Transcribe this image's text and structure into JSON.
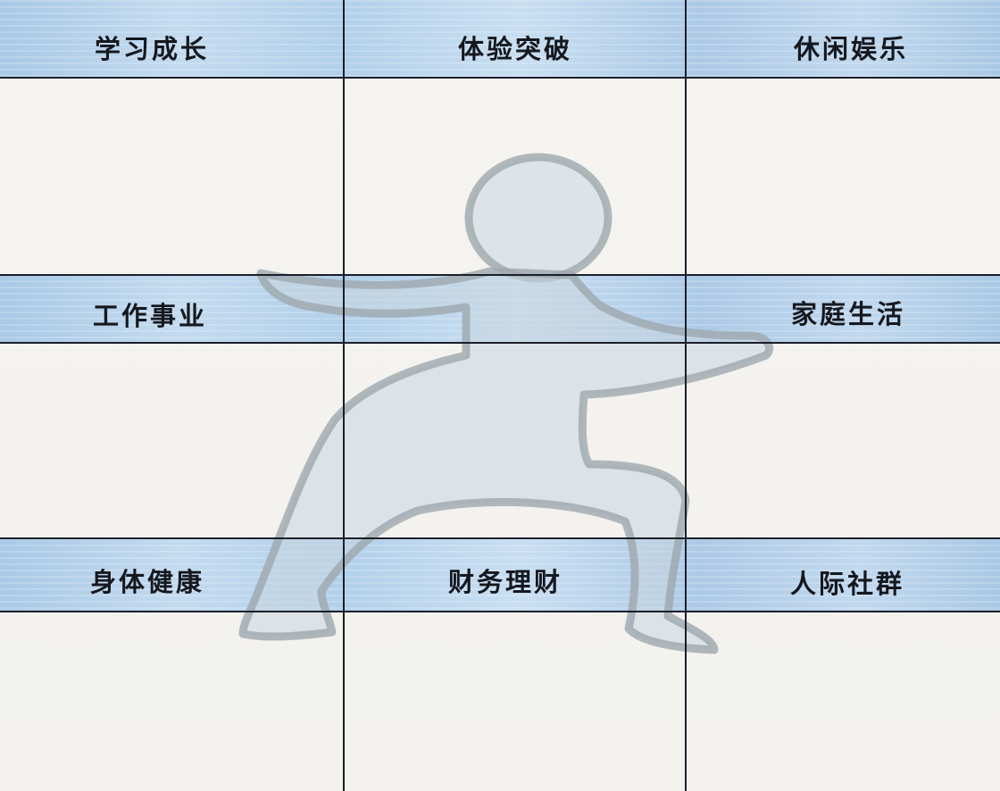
{
  "categories": [
    {
      "id": "study",
      "label": "学习成长"
    },
    {
      "id": "experience",
      "label": "体验突破"
    },
    {
      "id": "leisure",
      "label": "休闲娱乐"
    },
    {
      "id": "work",
      "label": "工作事业"
    },
    {
      "id": "family",
      "label": "家庭生活"
    },
    {
      "id": "health",
      "label": "身体健康"
    },
    {
      "id": "finance",
      "label": "财务理财"
    },
    {
      "id": "social",
      "label": "人际社群"
    }
  ],
  "colors": {
    "band_blue": "#b7d3ec",
    "line": "#1a1f2a",
    "figure_fill": "#c9d6df",
    "figure_outline": "#9ea8ae"
  }
}
